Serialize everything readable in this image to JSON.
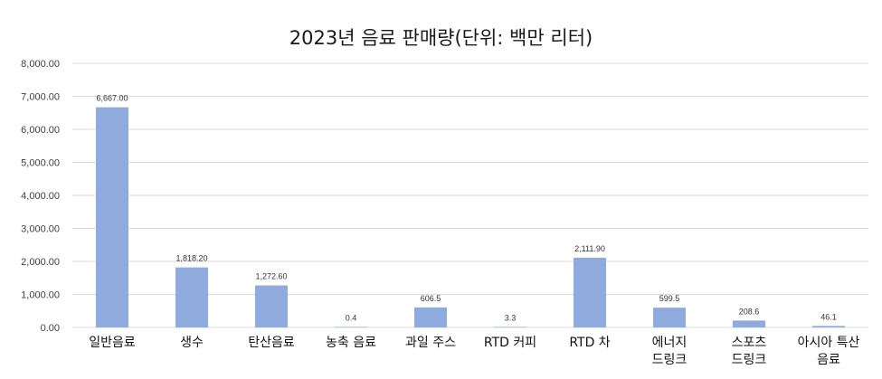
{
  "chart_data": {
    "type": "bar",
    "title": "2023년 음료 판매량(단위: 백만 리터)",
    "xlabel": "",
    "ylabel": "",
    "categories": [
      [
        "일반음료"
      ],
      [
        "생수"
      ],
      [
        "탄산음료"
      ],
      [
        "농축 음료"
      ],
      [
        "과일 주스"
      ],
      [
        "RTD 커피"
      ],
      [
        "RTD 차"
      ],
      [
        "에너지",
        "드링크"
      ],
      [
        "스포츠",
        "드링크"
      ],
      [
        "아시아 특산",
        "음료"
      ]
    ],
    "values": [
      6667.0,
      1818.2,
      1272.6,
      0.4,
      606.5,
      3.3,
      2111.9,
      599.5,
      208.6,
      46.1
    ],
    "data_labels": [
      "6,667.00",
      "1,818.20",
      "1,272.60",
      "0.4",
      "606.5",
      "3.3",
      "2,111.90",
      "599.5",
      "208.6",
      "46.1"
    ],
    "y_ticks": [
      "0.00",
      "1,000.00",
      "2,000.00",
      "3,000.00",
      "4,000.00",
      "5,000.00",
      "6,000.00",
      "7,000.00",
      "8,000.00"
    ],
    "ylim": [
      0,
      8000
    ],
    "grid": true,
    "legend": "none",
    "bar_color": "#8faadc",
    "grid_color": "#d9d9d9"
  }
}
